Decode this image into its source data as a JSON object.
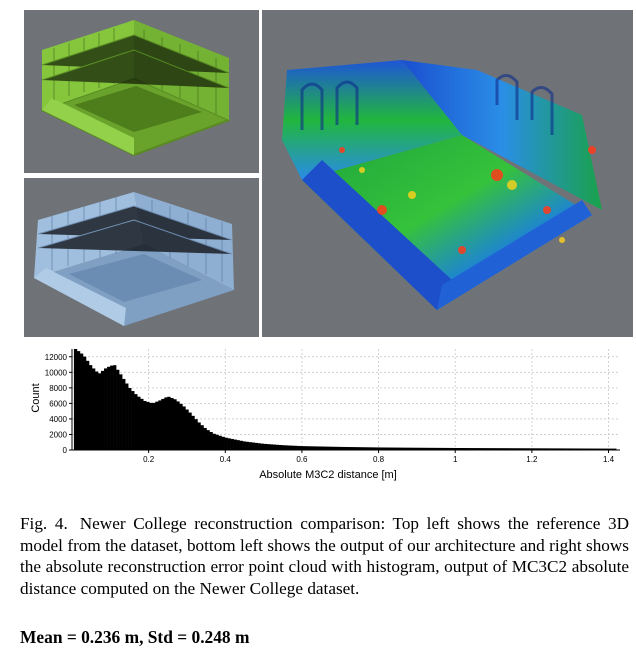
{
  "figure": {
    "label": "Fig. 4.",
    "caption": "Newer College reconstruction comparison: Top left shows the reference 3D model from the dataset, bottom left shows the output of our architecture and right shows the absolute reconstruction error point cloud with histogram, output of MC3C2 absolute distance computed on the Newer College dataset.",
    "stats": "Mean = 0.236 m, Std = 0.248 m"
  },
  "panels": {
    "top_left_color": "#7fc03a",
    "bottom_left_color": "#8fb2d6",
    "background_color": "#6f7377"
  },
  "chart_data": {
    "type": "bar",
    "xlabel": "Absolute M3C2 distance [m]",
    "ylabel": "Count",
    "xlim": [
      0,
      1.43
    ],
    "ylim": [
      0,
      13000
    ],
    "x_ticks": [
      0.2,
      0.4,
      0.6,
      0.8,
      1,
      1.2,
      1.4
    ],
    "x_tick_labels": [
      "0.2",
      "0.4",
      "0.6",
      "0.8",
      "1",
      "1.2",
      "1.4"
    ],
    "y_ticks": [
      0,
      2000,
      4000,
      6000,
      8000,
      10000,
      12000
    ],
    "y_tick_labels": [
      "0",
      "2000",
      "4000",
      "6000",
      "8000",
      "10000",
      "12000"
    ],
    "grid": true,
    "colormap": "blue-cyan-green-yellow-red",
    "x": [
      0.01,
      0.03,
      0.05,
      0.07,
      0.09,
      0.11,
      0.13,
      0.15,
      0.17,
      0.19,
      0.21,
      0.23,
      0.25,
      0.27,
      0.29,
      0.31,
      0.33,
      0.35,
      0.37,
      0.4,
      0.45,
      0.5,
      0.55,
      0.6,
      0.7,
      0.8,
      0.9,
      1.0,
      1.1,
      1.2,
      1.3,
      1.4
    ],
    "values": [
      13000,
      12200,
      10800,
      9800,
      10600,
      11000,
      9500,
      8000,
      7000,
      6300,
      6000,
      6400,
      6900,
      6500,
      5700,
      4700,
      3600,
      2700,
      2100,
      1600,
      1100,
      800,
      620,
      500,
      400,
      330,
      290,
      260,
      240,
      220,
      200,
      180
    ]
  }
}
